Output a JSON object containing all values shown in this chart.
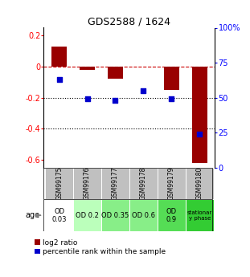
{
  "title": "GDS2588 / 1624",
  "samples": [
    "GSM99175",
    "GSM99176",
    "GSM99177",
    "GSM99178",
    "GSM99179",
    "GSM99180"
  ],
  "log2_ratio": [
    0.13,
    -0.02,
    -0.08,
    0.0,
    -0.15,
    -0.62
  ],
  "percentile_rank": [
    0.63,
    0.49,
    0.48,
    0.55,
    0.49,
    0.24
  ],
  "bar_color": "#990000",
  "dot_color": "#0000cc",
  "ylim_left": [
    -0.65,
    0.25
  ],
  "ylim_right": [
    0.0,
    1.0
  ],
  "yticks_left": [
    0.2,
    0.0,
    -0.2,
    -0.4,
    -0.6
  ],
  "yticks_right": [
    1.0,
    0.75,
    0.5,
    0.25,
    0.0
  ],
  "ytick_labels_left": [
    "0.2",
    "0",
    "-0.2",
    "-0.4",
    "-0.6"
  ],
  "ytick_labels_right": [
    "100%",
    "75",
    "50",
    "25",
    "0"
  ],
  "hlines": [
    0.0,
    -0.2,
    -0.4
  ],
  "hline_styles": [
    "--",
    ":",
    ":"
  ],
  "hline_colors": [
    "#cc0000",
    "#000000",
    "#000000"
  ],
  "age_labels": [
    "OD\n0.03",
    "OD 0.2",
    "OD 0.35",
    "OD 0.6",
    "OD\n0.9",
    "stationar\ny phase"
  ],
  "age_bg_colors": [
    "#ffffff",
    "#bbffbb",
    "#88ee88",
    "#88ee88",
    "#55dd55",
    "#33cc33"
  ],
  "sample_bg_color": "#c0c0c0",
  "legend_labels": [
    "log2 ratio",
    "percentile rank within the sample"
  ],
  "legend_colors": [
    "#990000",
    "#0000cc"
  ]
}
